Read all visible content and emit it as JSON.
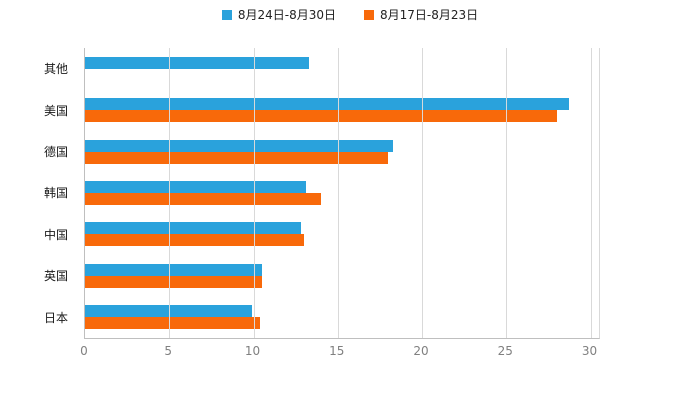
{
  "legend": {
    "items": [
      {
        "label": "8月24日-8月30日",
        "color": "#2aa2dc"
      },
      {
        "label": "8月17日-8月23日",
        "color": "#f8690a"
      }
    ],
    "position": "top"
  },
  "chart_data": {
    "type": "bar",
    "orientation": "horizontal",
    "title": "",
    "xlabel": "",
    "ylabel": "",
    "categories": [
      "其他",
      "美国",
      "德国",
      "韩国",
      "中国",
      "英国",
      "日本"
    ],
    "series": [
      {
        "name": "8月24日-8月30日",
        "color": "#2aa2dc",
        "values": [
          13.3,
          28.7,
          18.3,
          13.1,
          12.8,
          10.5,
          9.9
        ]
      },
      {
        "name": "8月17日-8月23日",
        "color": "#f8690a",
        "values": [
          0,
          28.0,
          18.0,
          14.0,
          13.0,
          10.5,
          10.4
        ]
      }
    ],
    "xlim": [
      0,
      30.5
    ],
    "xticks": [
      0,
      5,
      10,
      15,
      20,
      25,
      30
    ],
    "grid": true,
    "legend_position": "top"
  },
  "colors": {
    "axis_line": "#bfbfbf",
    "gridline": "#d9d9d9",
    "tick_text": "#808080",
    "category_text": "#1a1a1a",
    "background": "#ffffff"
  }
}
